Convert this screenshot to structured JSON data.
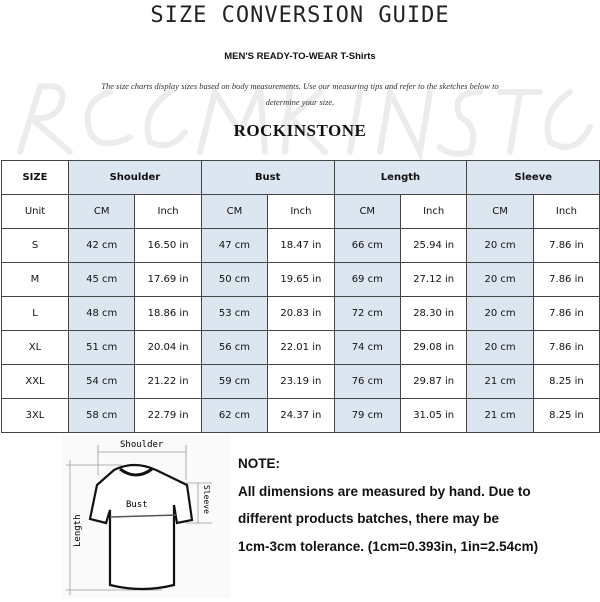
{
  "title": "SIZE CONVERSION GUIDE",
  "subtitle": "MEN'S READY-TO-WEAR T-Shirts",
  "description": "The size charts display sizes based on body measurements. Use our measuring tips and refer to the sketches below to determine your size.",
  "watermark": "ROCK IN STONE",
  "brand": "ROCKINSTONE",
  "table": {
    "headers": [
      "SIZE",
      "Shoulder",
      "Bust",
      "Length",
      "Sleeve"
    ],
    "unit_row": [
      "Unit",
      "CM",
      "Inch",
      "CM",
      "Inch",
      "CM",
      "Inch",
      "CM",
      "Inch"
    ],
    "rows": [
      [
        "S",
        "42 cm",
        "16.50 in",
        "47 cm",
        "18.47 in",
        "66 cm",
        "25.94 in",
        "20 cm",
        "7.86 in"
      ],
      [
        "M",
        "45 cm",
        "17.69 in",
        "50 cm",
        "19.65 in",
        "69 cm",
        "27.12 in",
        "20 cm",
        "7.86 in"
      ],
      [
        "L",
        "48 cm",
        "18.86 in",
        "53 cm",
        "20.83 in",
        "72 cm",
        "28.30 in",
        "20 cm",
        "7.86 in"
      ],
      [
        "XL",
        "51 cm",
        "20.04 in",
        "56 cm",
        "22.01 in",
        "74 cm",
        "29.08 in",
        "20 cm",
        "7.86 in"
      ],
      [
        "XXL",
        "54 cm",
        "21.22 in",
        "59 cm",
        "23.19 in",
        "76 cm",
        "29.87 in",
        "21 cm",
        "8.25 in"
      ],
      [
        "3XL",
        "58 cm",
        "22.79 in",
        "62 cm",
        "24.37 in",
        "79 cm",
        "31.05 in",
        "21 cm",
        "8.25 in"
      ]
    ]
  },
  "diagram": {
    "labels": [
      "Shoulder",
      "Bust",
      "Sleeve",
      "Length"
    ]
  },
  "note": {
    "heading": "NOTE:",
    "lines": [
      "All dimensions are measured by hand. Due to",
      "different products batches, there may be",
      "1cm-3cm tolerance. (1cm=0.393in, 1in=2.54cm)"
    ]
  },
  "colors": {
    "header_fill": "#dce6f1",
    "border": "#444444"
  }
}
